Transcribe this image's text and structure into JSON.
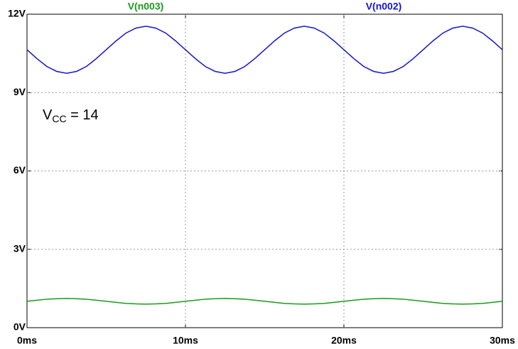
{
  "chart_data": {
    "type": "line",
    "x": [
      0,
      0.625,
      1.25,
      1.875,
      2.5,
      3.125,
      3.75,
      4.375,
      5,
      5.625,
      6.25,
      6.875,
      7.5,
      8.125,
      8.75,
      9.375,
      10,
      10.625,
      11.25,
      11.875,
      12.5,
      13.125,
      13.75,
      14.375,
      15,
      15.625,
      16.25,
      16.875,
      17.5,
      18.125,
      18.75,
      19.375,
      20,
      20.625,
      21.25,
      21.875,
      22.5,
      23.125,
      23.75,
      24.375,
      25,
      25.625,
      26.25,
      26.875,
      27.5,
      28.125,
      28.75,
      29.375,
      30
    ],
    "series": [
      {
        "name": "V(n003)",
        "color": "#1a9a1a",
        "values": [
          1.01,
          1.05,
          1.09,
          1.11,
          1.12,
          1.11,
          1.09,
          1.05,
          1.01,
          0.97,
          0.93,
          0.91,
          0.9,
          0.91,
          0.93,
          0.97,
          1.01,
          1.05,
          1.09,
          1.11,
          1.12,
          1.11,
          1.09,
          1.05,
          1.01,
          0.97,
          0.93,
          0.91,
          0.9,
          0.91,
          0.93,
          0.97,
          1.01,
          1.05,
          1.09,
          1.11,
          1.12,
          1.11,
          1.09,
          1.05,
          1.01,
          0.97,
          0.93,
          0.91,
          0.9,
          0.91,
          0.93,
          0.97,
          1.01
        ]
      },
      {
        "name": "V(n002)",
        "color": "#1515d0",
        "values": [
          10.64,
          10.3,
          10.0,
          9.81,
          9.74,
          9.81,
          10.0,
          10.3,
          10.64,
          10.98,
          11.28,
          11.47,
          11.54,
          11.47,
          11.28,
          10.98,
          10.64,
          10.3,
          10.0,
          9.81,
          9.74,
          9.81,
          10.0,
          10.3,
          10.64,
          10.98,
          11.28,
          11.47,
          11.54,
          11.47,
          11.28,
          10.98,
          10.64,
          10.3,
          10.0,
          9.81,
          9.74,
          9.81,
          10.0,
          10.3,
          10.64,
          10.98,
          11.28,
          11.47,
          11.54,
          11.47,
          11.28,
          10.98,
          10.64
        ]
      }
    ],
    "xlim": [
      0,
      30
    ],
    "xticks": [
      {
        "value": 0,
        "label": "0ms"
      },
      {
        "value": 10,
        "label": "10ms"
      },
      {
        "value": 20,
        "label": "20ms"
      },
      {
        "value": 30,
        "label": "30ms"
      }
    ],
    "ylim": [
      0,
      12
    ],
    "yticks": [
      {
        "value": 0,
        "label": "0V"
      },
      {
        "value": 3,
        "label": "3V"
      },
      {
        "value": 6,
        "label": "6V"
      },
      {
        "value": 9,
        "label": "9V"
      },
      {
        "value": 12,
        "label": "12V"
      }
    ],
    "grid": true,
    "annotation": {
      "text": "V",
      "subscript": "CC",
      "suffix": " = 14"
    }
  }
}
